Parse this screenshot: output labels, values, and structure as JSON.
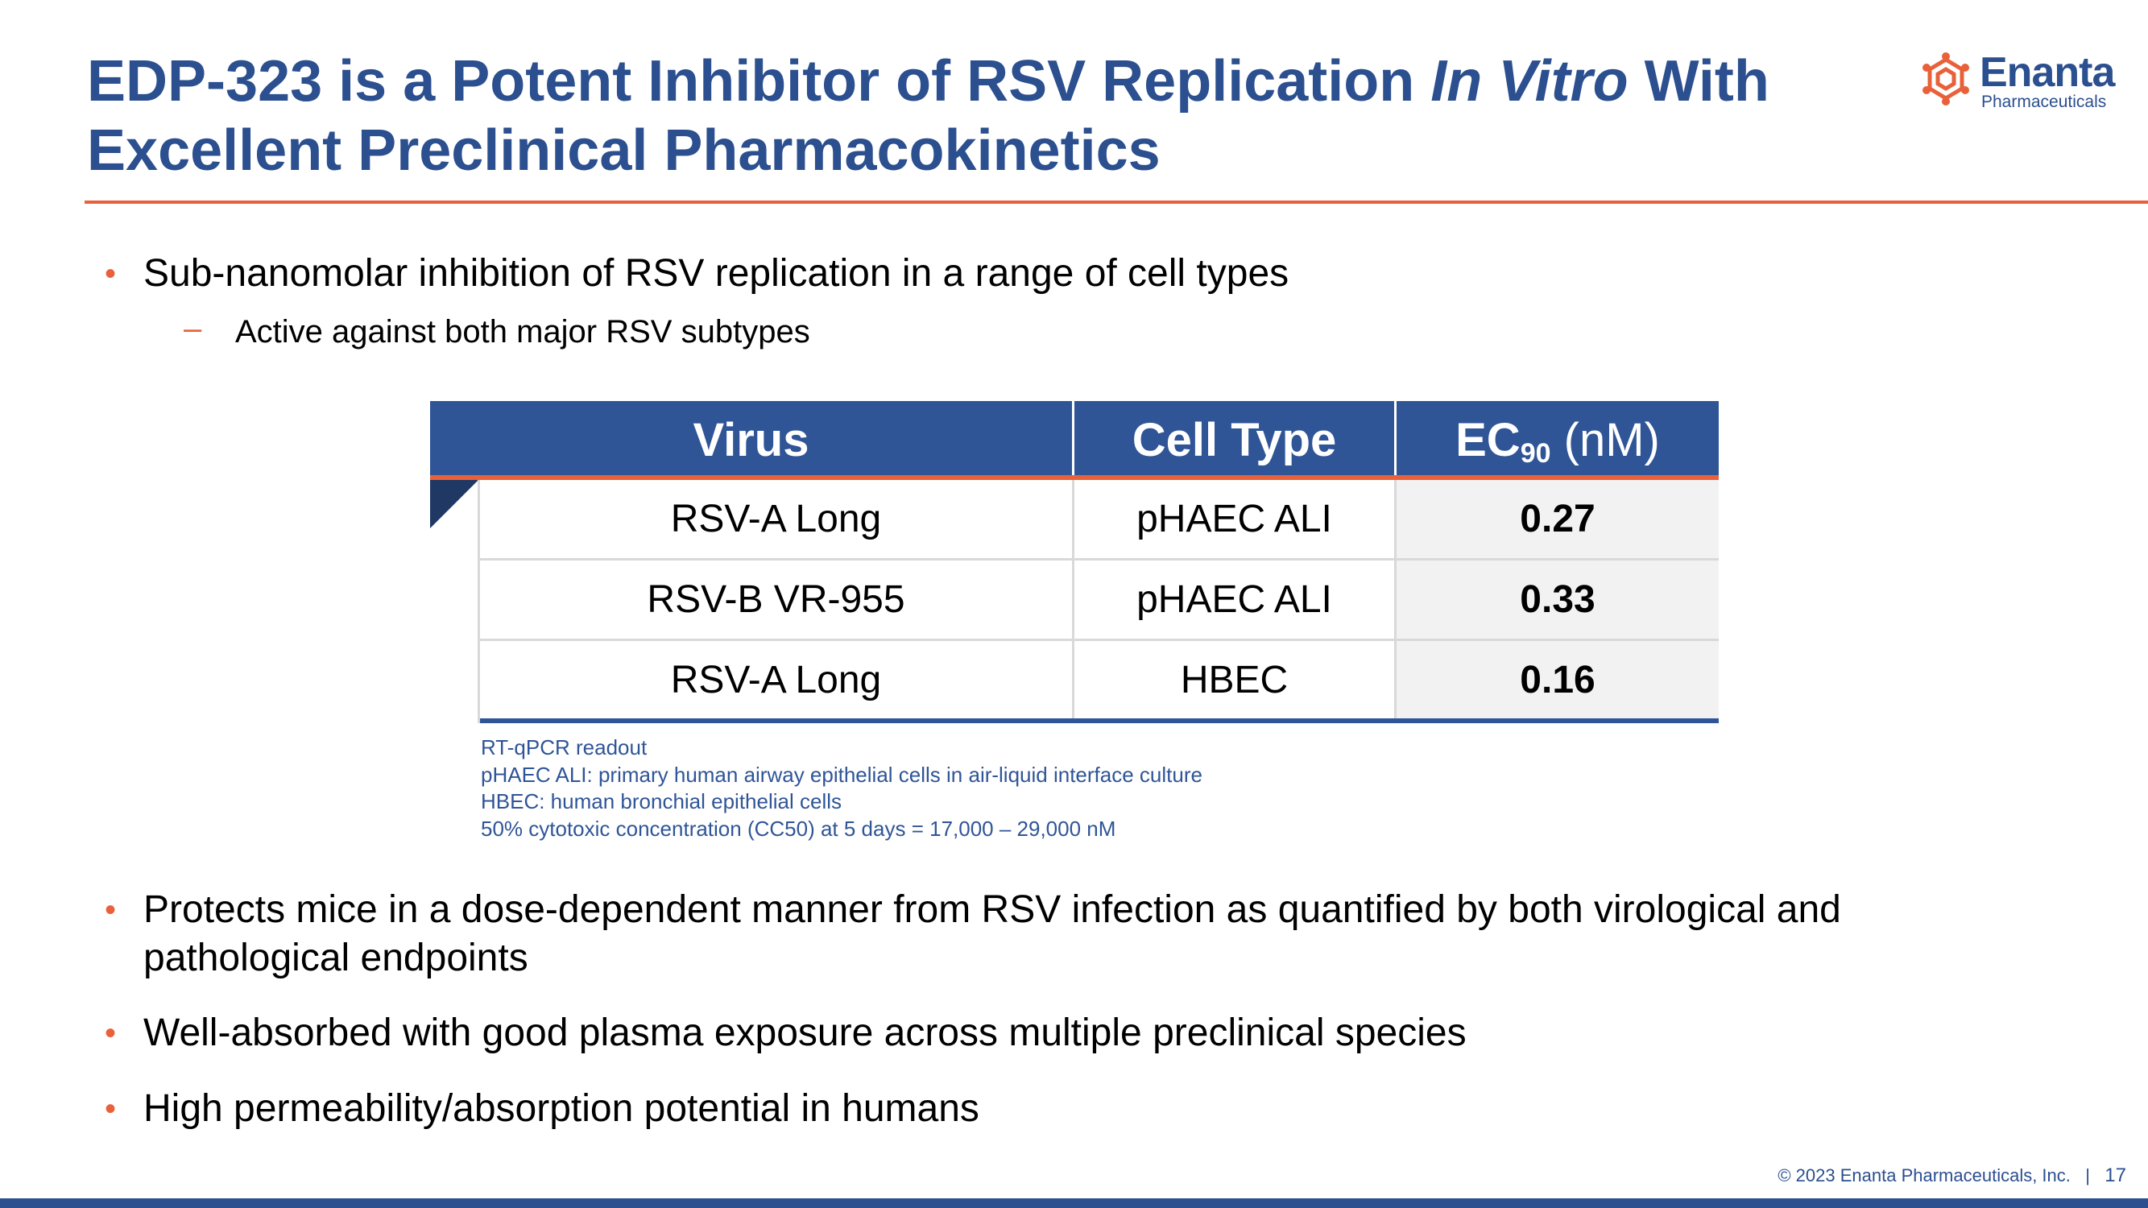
{
  "title": {
    "part1": "EDP-323 is a Potent Inhibitor of RSV Replication ",
    "italic": "In Vitro",
    "part2": " With Excellent Preclinical Pharmacokinetics"
  },
  "logo": {
    "name": "Enanta",
    "sub": "Pharmaceuticals",
    "icon": "enanta-molecule-icon"
  },
  "bullets_top": [
    {
      "text": "Sub-nanomolar inhibition of RSV replication in a range of cell types"
    }
  ],
  "sub_bullet": {
    "text": "Active against both major RSV subtypes"
  },
  "table": {
    "headers": {
      "virus": "Virus",
      "cell_type": "Cell Type",
      "ec": "EC",
      "ec_sub": "90",
      "ec_unit": " (nM)"
    },
    "rows": [
      {
        "virus": "RSV-A Long",
        "cell_type": "pHAEC ALI",
        "ec90": "0.27"
      },
      {
        "virus": "RSV-B VR-955",
        "cell_type": "pHAEC ALI",
        "ec90": "0.33"
      },
      {
        "virus": "RSV-A Long",
        "cell_type": "HBEC",
        "ec90": "0.16"
      }
    ]
  },
  "notes": [
    "RT-qPCR readout",
    "pHAEC ALI: primary human airway epithelial cells in air-liquid interface culture",
    "HBEC: human bronchial epithelial cells",
    "50% cytotoxic concentration (CC50) at 5 days = 17,000 – 29,000 nM"
  ],
  "bullets_bottom": [
    {
      "text": "Protects mice in a dose-dependent manner from RSV infection as quantified by both virological and pathological endpoints"
    },
    {
      "text": "Well-absorbed with good plasma exposure across multiple preclinical species"
    },
    {
      "text": "High permeability/absorption potential in humans"
    }
  ],
  "footer": {
    "copyright": "© 2023  Enanta Pharmaceuticals, Inc.",
    "separator": "|",
    "page": "17"
  },
  "colors": {
    "title": "#2b4f8f",
    "accent": "#e8613a",
    "table_header": "#2f5597"
  }
}
